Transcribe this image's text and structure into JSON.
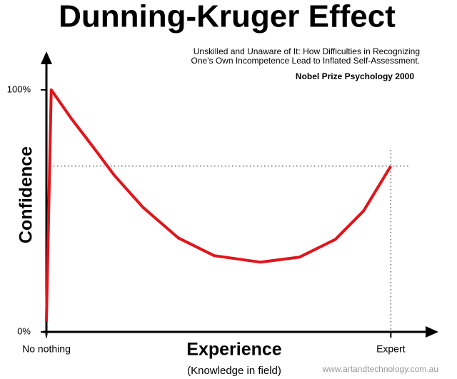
{
  "chart_data": {
    "type": "line",
    "title": "Dunning-Kruger Effect",
    "subtitle": [
      "Unskilled and Unaware of It: How Difficulties in Recognizing",
      "One's Own Incompetence Lead to Inflated Self-Assessment."
    ],
    "annotation": "Nobel Prize Psychology  2000",
    "y_label": "Confidence",
    "x_label": "Experience",
    "x_sublabel": "(Knowledge in field)",
    "credit": "www.artandtechnology.com.au",
    "x": [
      0,
      1.4,
      7.2,
      13.5,
      19.7,
      28,
      38.3,
      48.7,
      62.1,
      73.5,
      83.9,
      92.1,
      100
    ],
    "series": [
      {
        "name": "Confidence",
        "color": "#e0151b",
        "values": [
          4.4,
          100,
          88.2,
          76.5,
          64.7,
          51.5,
          38.8,
          31.5,
          28.8,
          30.9,
          38.2,
          50,
          68.5
        ]
      }
    ],
    "reference_lines": {
      "x": 100,
      "y": 68.5
    },
    "xlim": [
      0,
      113
    ],
    "ylim": [
      0,
      115
    ],
    "xticks": [
      {
        "value": 0,
        "label": "No nothing"
      },
      {
        "value": 100,
        "label": "Expert"
      }
    ],
    "yticks": [
      {
        "value": 0,
        "label": "0%"
      },
      {
        "value": 100,
        "label": "100%"
      }
    ]
  }
}
